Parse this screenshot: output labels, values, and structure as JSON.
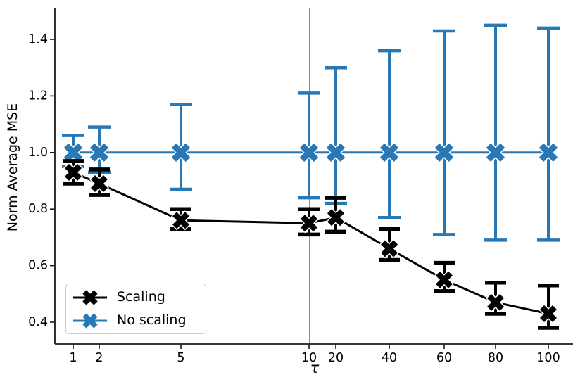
{
  "chart_data": {
    "type": "line",
    "subtype": "errorbar",
    "title": "",
    "xlabel": "τ",
    "ylabel": "Norm Average MSE",
    "marker": "X",
    "grid": false,
    "x": [
      1,
      2,
      5,
      10,
      20,
      40,
      60,
      80,
      100
    ],
    "x_ticks": [
      "1",
      "2",
      "5",
      "10",
      "20",
      "40",
      "60",
      "80",
      "100"
    ],
    "y_ticks": [
      "0.4",
      "0.6",
      "0.8",
      "1.0",
      "1.2",
      "1.4"
    ],
    "y_tick_values": [
      0.4,
      0.6,
      0.8,
      1.0,
      1.2,
      1.4
    ],
    "ylim": [
      0.325,
      1.51
    ],
    "x_scale": "piecewise-linear (compressed after breakpoint 10)",
    "vline_x": 10,
    "vline_color": "#4d4d4d",
    "series": [
      {
        "name": "No scaling",
        "color": "#2878b6",
        "values": [
          1.0,
          1.0,
          1.0,
          1.0,
          1.0,
          1.0,
          1.0,
          1.0,
          1.0
        ],
        "err_lo": [
          0.95,
          0.93,
          0.87,
          0.84,
          0.82,
          0.77,
          0.71,
          0.69,
          0.69
        ],
        "err_hi": [
          1.06,
          1.09,
          1.17,
          1.21,
          1.3,
          1.36,
          1.43,
          1.45,
          1.44
        ]
      },
      {
        "name": "Scaling",
        "color": "#000000",
        "values": [
          0.93,
          0.89,
          0.76,
          0.75,
          0.77,
          0.66,
          0.55,
          0.47,
          0.43
        ],
        "err_lo": [
          0.89,
          0.85,
          0.73,
          0.71,
          0.72,
          0.62,
          0.51,
          0.43,
          0.38
        ],
        "err_hi": [
          0.97,
          0.94,
          0.8,
          0.8,
          0.84,
          0.73,
          0.61,
          0.54,
          0.53
        ]
      }
    ],
    "legend": {
      "position": "lower-left",
      "items": [
        "Scaling",
        "No scaling"
      ]
    }
  }
}
